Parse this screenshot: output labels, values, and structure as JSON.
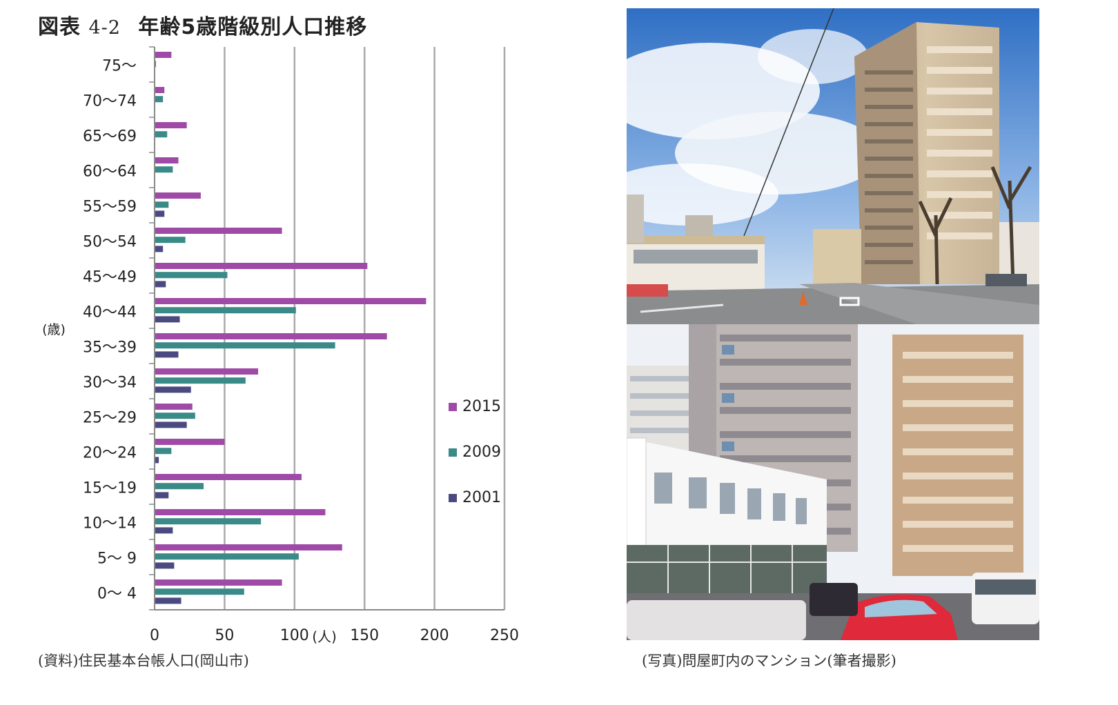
{
  "figure": {
    "title_prefix": "図表",
    "title_number": "4-2",
    "title_text": "年齢5歳階級別人口推移"
  },
  "chart_data": {
    "type": "bar",
    "orientation": "horizontal",
    "categories": [
      "75〜",
      "70〜74",
      "65〜69",
      "60〜64",
      "55〜59",
      "50〜54",
      "45〜49",
      "40〜44",
      "35〜39",
      "30〜34",
      "25〜29",
      "20〜24",
      "15〜19",
      "10〜14",
      "5〜 9",
      "0〜 4"
    ],
    "series": [
      {
        "name": "2015",
        "color": "#a04aa8",
        "values": [
          12,
          7,
          23,
          17,
          33,
          91,
          152,
          194,
          166,
          74,
          27,
          50,
          105,
          122,
          134,
          91
        ]
      },
      {
        "name": "2009",
        "color": "#3a8a88",
        "values": [
          1,
          6,
          9,
          13,
          10,
          22,
          52,
          101,
          129,
          65,
          29,
          12,
          35,
          76,
          103,
          64
        ]
      },
      {
        "name": "2001",
        "color": "#4b4a80",
        "values": [
          0,
          0,
          0,
          0,
          7,
          6,
          8,
          18,
          17,
          26,
          23,
          3,
          10,
          13,
          14,
          19
        ]
      }
    ],
    "x_ticks": [
      "0",
      "50",
      "100",
      "150",
      "200",
      "250"
    ],
    "xlim": [
      0,
      250
    ],
    "x_unit": "(人)",
    "y_unit": "(歳)",
    "grid": "vertical",
    "legend_position": "right"
  },
  "captions": {
    "source": "(資料)住民基本台帳人口(岡山市)",
    "photo": "(写真)問屋町内のマンション(筆者撮影)"
  }
}
